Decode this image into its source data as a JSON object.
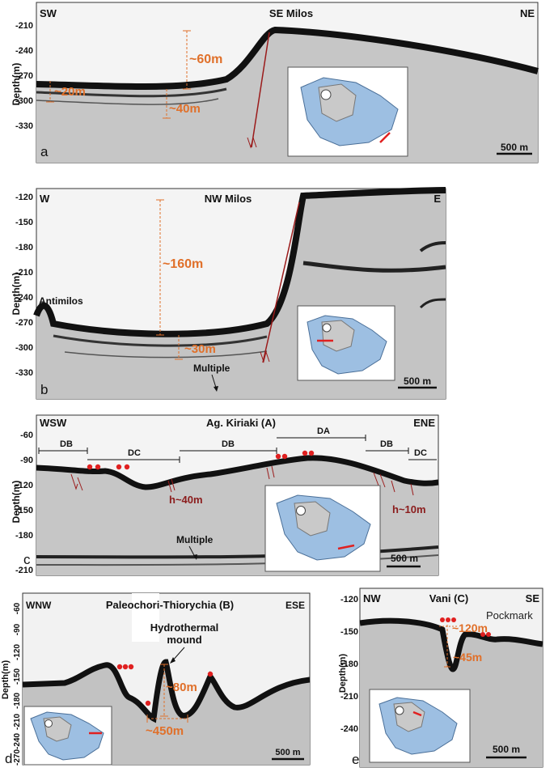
{
  "panels": {
    "a": {
      "letter": "a",
      "left": "SW",
      "title": "SE Milos",
      "right": "NE",
      "depth_label": "Depth(m)",
      "ticks": [
        "-210",
        "-240",
        "-270",
        "-300",
        "-330"
      ],
      "ann1": "~60m",
      "ann2": "~20m",
      "ann3": "~40m",
      "scale": "500 m"
    },
    "b": {
      "letter": "b",
      "left": "W",
      "title": "NW Milos",
      "right": "E",
      "depth_label": "Depth(m)",
      "ticks": [
        "-120",
        "-150",
        "-180",
        "-210",
        "-240",
        "-270",
        "-300",
        "-330"
      ],
      "ann1": "~160m",
      "ann2": "~30m",
      "place": "Antimilos",
      "multiple": "Multiple",
      "scale": "500 m"
    },
    "c": {
      "letter": "c",
      "left": "WSW",
      "title": "Ag. Kiriaki (A)",
      "right": "ENE",
      "depth_label": "Depth(m)",
      "ticks": [
        "-60",
        "-90",
        "-120",
        "-150",
        "-180",
        "-210"
      ],
      "db": "DB",
      "dc": "DC",
      "da": "DA",
      "h1": "h~40m",
      "h2": "h~10m",
      "multiple": "Multiple",
      "scale": "500 m"
    },
    "d": {
      "letter": "d",
      "left": "WNW",
      "title": "Paleochori-Thiorychia (B)",
      "right": "ESE",
      "depth_label": "Depth(m)",
      "ticks": [
        "-60",
        "-90",
        "-120",
        "-150",
        "-180",
        "-210",
        "-240",
        "-270"
      ],
      "mound1": "Hydrothermal",
      "mound2": "mound",
      "ann1": "~80m",
      "ann2": "~450m",
      "scale": "500 m"
    },
    "e": {
      "letter": "e",
      "left": "NW",
      "title": "Vani (C)",
      "right": "SE",
      "depth_label": "Depth(m)",
      "ticks": [
        "-120",
        "-150",
        "-180",
        "-210",
        "-240"
      ],
      "pock": "Pockmark",
      "ann1": "~120m",
      "ann2": "~45m",
      "scale": "500 m"
    }
  },
  "colors": {
    "orange": "#e0702a",
    "red": "#e02020",
    "fault": "#9b1b1b",
    "map_blue": "#7aa6d6"
  }
}
